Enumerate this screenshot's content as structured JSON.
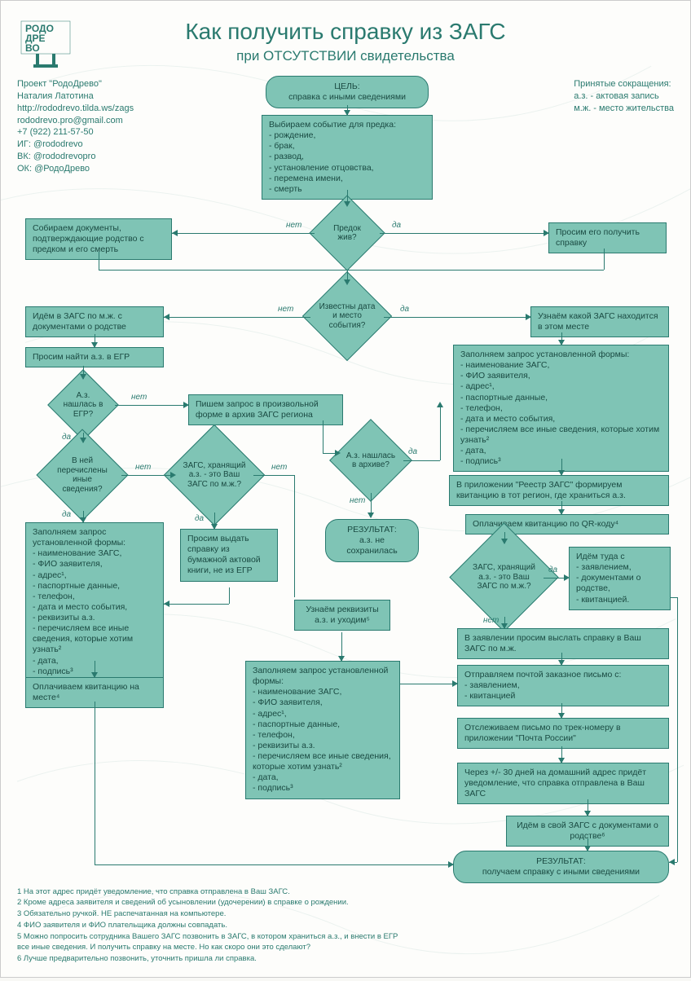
{
  "meta": {
    "title": "Как получить справку из ЗАГС",
    "subtitle": "при ОТСУТСТВИИ свидетельства",
    "logo_text": "РОДО ДРЕ ВО"
  },
  "contact": {
    "project": "Проект \"РодоДрево\"",
    "author": "Наталия Латотина",
    "url": "http://rododrevo.tilda.ws/zags",
    "email": "rododrevo.pro@gmail.com",
    "phone": "+7 (922) 211-57-50",
    "ig": "ИГ: @rododrevo",
    "vk": "ВК: @rododrevopro",
    "ok": "ОК: @РодоДрево"
  },
  "abbr": {
    "heading": "Принятые сокращения:",
    "a1": "а.з. - актовая запись",
    "a2": "м.ж. - место жительства"
  },
  "nodes": {
    "goal": "ЦЕЛЬ:\nсправка с иными сведениями",
    "choose_event": "Выбираем событие для предка:\n- рождение,\n- брак,\n- развод,\n- установление отцовства,\n- перемена имени,\n- смерть",
    "alive": "Предок жив?",
    "collect_docs": "Собираем документы, подтверждающие родство с предком и его смерть",
    "ask_him": "Просим его получить справку",
    "date_place_known": "Известны дата и место события?",
    "go_zags_mj": "Идём в ЗАГС по м.ж. с документами о родстве",
    "find_which_zags": "Узнаём какой ЗАГС находится в этом месте",
    "ask_find_egr": "Просим найти а.з. в ЕГР",
    "az_in_egr": "А.з. нашлась в ЕГР?",
    "other_info_listed": "В ней перечислены иные сведения?",
    "zags_is_yours": "ЗАГС, хранящий а.з. - это Ваш ЗАГС по м.ж.?",
    "write_freeform": "Пишем запрос в произвольной форме в архив ЗАГС региона",
    "ask_paper_book": "Просим выдать справку из бумажной актовой книги, не из ЕГР",
    "az_in_archive": "А.з. нашлась в архиве?",
    "result_lost": "РЕЗУЛЬТАТ:\nа.з. не сохранилась",
    "learn_requisites": "Узнаём реквизиты а.з. и уходим⁵",
    "fill_form_left": "Заполняем запрос установленной формы:\n- наименование ЗАГС,\n- ФИО заявителя,\n- адрес¹,\n- паспортные данные,\n- телефон,\n- дата и место события,\n- реквизиты а.з.\n- перечисляем все иные сведения, которые хотим узнать²\n- дата,\n- подпись³",
    "fill_form_center": "Заполняем запрос установленной формы:\n- наименование ЗАГС,\n- ФИО заявителя,\n- адрес¹,\n- паспортные данные,\n- телефон,\n- реквизиты а.з.\n- перечисляем все иные сведения, которые хотим узнать²\n- дата,\n- подпись³",
    "fill_form_right": "Заполняем запрос установленной формы:\n- наименование ЗАГС,\n- ФИО заявителя,\n- адрес¹,\n- паспортные данные,\n- телефон,\n- дата и место события,\n- перечисляем все иные сведения, которые хотим узнать²\n- дата,\n- подпись³",
    "pay_onsite": "Оплачиваем квитанцию на месте⁴",
    "reestr_zags": "В приложении \"Реестр ЗАГС\" формируем квитанцию в тот регион, где храниться а.з.",
    "pay_qr": "Оплачиваем квитанцию по QR-коду⁴",
    "zags_is_yours2": "ЗАГС, хранящий а.з. - это Ваш ЗАГС по м.ж.?",
    "go_there": "Идём туда с\n- заявлением,\n- документами о родстве,\n- квитанцией.",
    "ask_send": "В заявлении просим выслать справку в Ваш ЗАГС по м.ж.",
    "send_mail": "Отправляем почтой заказное письмо с:\n- заявлением,\n- квитанцией",
    "track_mail": "Отслеживаем письмо по трек-номеру в приложении \"Почта России\"",
    "wait_30": "Через +/- 30 дней на домашний адрес придёт уведомление, что справка отправлена в Ваш ЗАГС",
    "go_own_zags": "Идём в свой ЗАГС с документами о родстве⁶",
    "result_final": "РЕЗУЛЬТАТ:\nполучаем справку с иными сведениями"
  },
  "edge_labels": {
    "yes": "да",
    "no": "нет"
  },
  "footnotes": {
    "f1": "1 На этот адрес придёт уведомление, что справка отправлена в Ваш ЗАГС.",
    "f2": "2 Кроме адреса заявителя и сведений об усыновлении (удочерении) в справке о рождении.",
    "f3": "3 Обязательно ручкой. НЕ распечатанная на компьютере.",
    "f4": "4 ФИО заявителя и ФИО плательщика должны совпадать.",
    "f5": "5 Можно попросить сотрудника Вашего ЗАГС позвонить в ЗАГС, в котором храниться а.з., и внести в ЕГР все иные сведения. И получить справку на месте. Но как скоро они это сделают?",
    "f6": "6 Лучше предварительно позвонить, уточнить пришла ли справка."
  },
  "style": {
    "node_fill": "#7fc4b5",
    "node_border": "#2a7a6f",
    "text_color": "#1a4a42",
    "accent": "#2a7a6f",
    "bg": "#fdfdfb"
  }
}
